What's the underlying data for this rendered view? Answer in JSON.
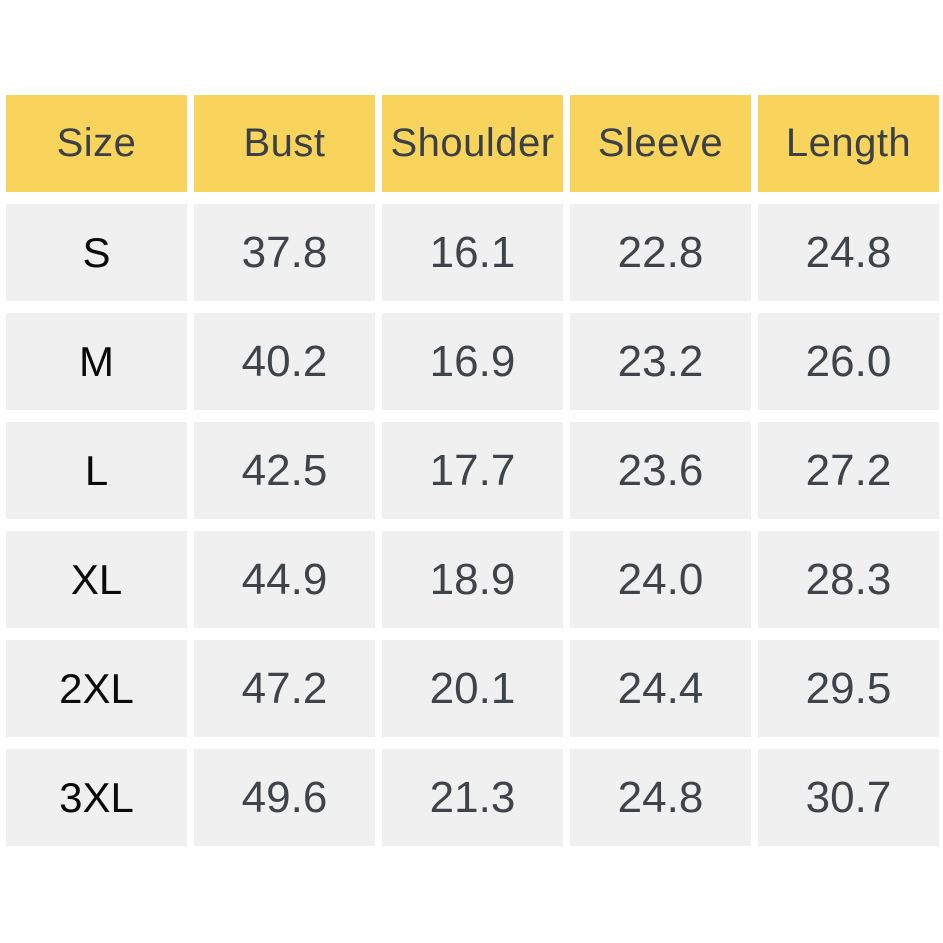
{
  "chart_data": {
    "type": "table",
    "columns": [
      "Size",
      "Bust",
      "Shoulder",
      "Sleeve",
      "Length"
    ],
    "rows": [
      {
        "size": "S",
        "values": [
          "37.8",
          "16.1",
          "22.8",
          "24.8"
        ]
      },
      {
        "size": "M",
        "values": [
          "40.2",
          "16.9",
          "23.2",
          "26.0"
        ]
      },
      {
        "size": "L",
        "values": [
          "42.5",
          "17.7",
          "23.6",
          "27.2"
        ]
      },
      {
        "size": "XL",
        "values": [
          "44.9",
          "18.9",
          "24.0",
          "28.3"
        ]
      },
      {
        "size": "2XL",
        "values": [
          "47.2",
          "20.1",
          "24.4",
          "29.5"
        ]
      },
      {
        "size": "3XL",
        "values": [
          "49.6",
          "21.3",
          "24.8",
          "30.7"
        ]
      }
    ],
    "layout": {
      "header_position": "top",
      "grid": "separated-cells"
    }
  },
  "colors": {
    "header_background": "#F9D45C",
    "cell_background": "#F0F0F0",
    "page_background": "#FFFFFF",
    "header_text": "#3A4046",
    "value_text": "#3E444A",
    "size_label_text": "#0A0A0A"
  }
}
